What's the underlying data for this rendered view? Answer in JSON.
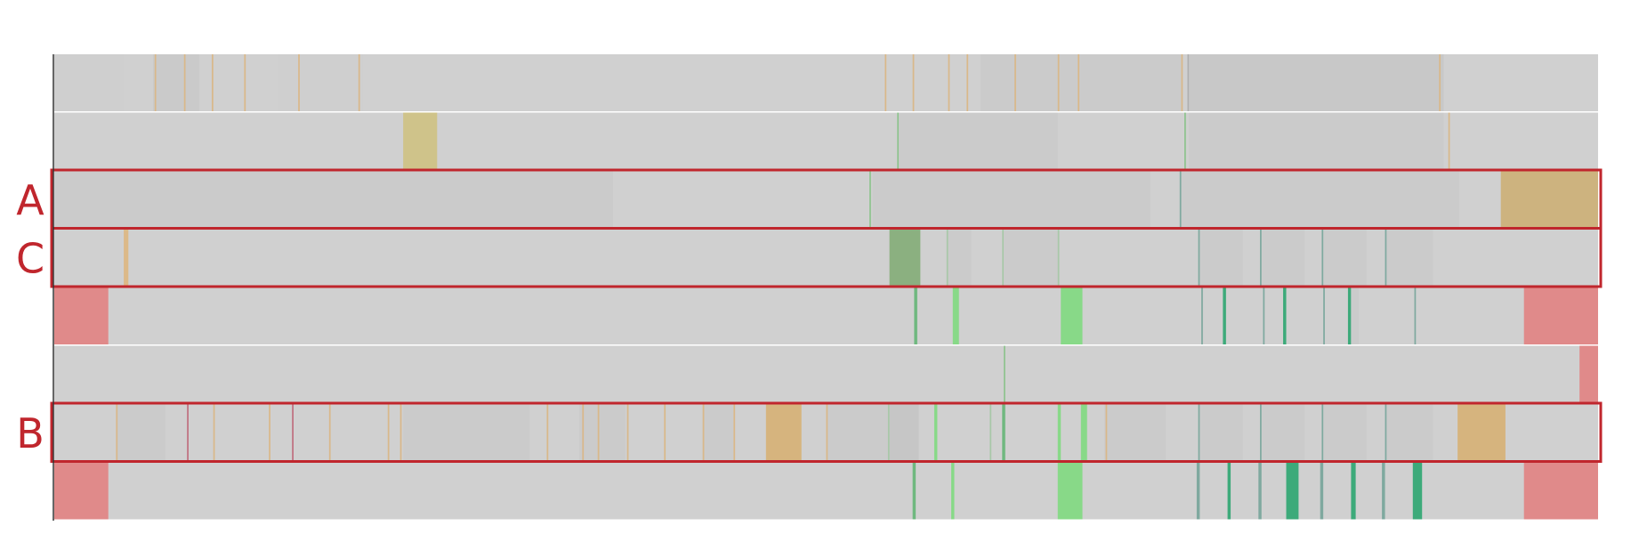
{
  "chart_data": {
    "type": "heatmap",
    "title": "",
    "xlabel": "",
    "ylabel": "",
    "x_range": [
      0,
      1
    ],
    "grid": false,
    "legend": "none",
    "base_color": "#d0d0d0",
    "highlight_color": "#c0262d",
    "row_label_color": "#c0262d",
    "tracks": [
      {
        "label": "",
        "highlighted": false,
        "segments": [
          {
            "start": 0.0,
            "end": 0.045,
            "color": "#cfcfcf"
          },
          {
            "start": 0.064,
            "end": 0.094,
            "color": "#cacaca"
          },
          {
            "start": 0.145,
            "end": 0.2,
            "color": "#cfcfcf"
          },
          {
            "start": 0.6,
            "end": 0.73,
            "color": "#cbcbcb"
          },
          {
            "start": 0.735,
            "end": 0.9,
            "color": "#c8c8c8"
          },
          {
            "start": 0.065,
            "end": 0.066,
            "color": "#d9b88a"
          },
          {
            "start": 0.084,
            "end": 0.085,
            "color": "#d9b88a"
          },
          {
            "start": 0.102,
            "end": 0.103,
            "color": "#d9b88a"
          },
          {
            "start": 0.123,
            "end": 0.124,
            "color": "#d9b88a"
          },
          {
            "start": 0.158,
            "end": 0.159,
            "color": "#d9b88a"
          },
          {
            "start": 0.197,
            "end": 0.198,
            "color": "#d9b88a"
          },
          {
            "start": 0.538,
            "end": 0.539,
            "color": "#d9b88a"
          },
          {
            "start": 0.556,
            "end": 0.557,
            "color": "#d9b88a"
          },
          {
            "start": 0.579,
            "end": 0.58,
            "color": "#d9b88a"
          },
          {
            "start": 0.591,
            "end": 0.592,
            "color": "#d9b88a"
          },
          {
            "start": 0.622,
            "end": 0.623,
            "color": "#d9b88a"
          },
          {
            "start": 0.65,
            "end": 0.651,
            "color": "#d9b88a"
          },
          {
            "start": 0.663,
            "end": 0.664,
            "color": "#d9b88a"
          },
          {
            "start": 0.73,
            "end": 0.731,
            "color": "#d9b88a"
          },
          {
            "start": 0.734,
            "end": 0.735,
            "color": "#b0b0b0"
          },
          {
            "start": 0.897,
            "end": 0.898,
            "color": "#d9b88a"
          }
        ]
      },
      {
        "label": "",
        "highlighted": false,
        "segments": [
          {
            "start": 0.546,
            "end": 0.65,
            "color": "#cbcbcb"
          },
          {
            "start": 0.735,
            "end": 0.9,
            "color": "#cbcbcb"
          },
          {
            "start": 0.226,
            "end": 0.248,
            "color": "#cfc38a"
          },
          {
            "start": 0.546,
            "end": 0.547,
            "color": "#8fc48f"
          },
          {
            "start": 0.732,
            "end": 0.733,
            "color": "#8fc48f"
          },
          {
            "start": 0.903,
            "end": 0.904,
            "color": "#d9b88a"
          }
        ]
      },
      {
        "label": "A",
        "highlighted": true,
        "segments": [
          {
            "start": 0.0,
            "end": 0.362,
            "color": "#cbcbcb"
          },
          {
            "start": 0.53,
            "end": 0.71,
            "color": "#cbcbcb"
          },
          {
            "start": 0.73,
            "end": 0.91,
            "color": "#cbcbcb"
          },
          {
            "start": 0.528,
            "end": 0.529,
            "color": "#8fc48f"
          },
          {
            "start": 0.729,
            "end": 0.73,
            "color": "#7fa99f"
          },
          {
            "start": 0.937,
            "end": 1.0,
            "color": "#cdb37f"
          }
        ]
      },
      {
        "label": "C",
        "highlighted": true,
        "segments": [
          {
            "start": 0.045,
            "end": 0.048,
            "color": "#dcb988"
          },
          {
            "start": 0.541,
            "end": 0.561,
            "color": "#8bb080"
          },
          {
            "start": 0.578,
            "end": 0.594,
            "color": "#cbcbcb"
          },
          {
            "start": 0.615,
            "end": 0.65,
            "color": "#cbcbcb"
          },
          {
            "start": 0.742,
            "end": 0.77,
            "color": "#cbcbcb"
          },
          {
            "start": 0.782,
            "end": 0.81,
            "color": "#cbcbcb"
          },
          {
            "start": 0.822,
            "end": 0.85,
            "color": "#cbcbcb"
          },
          {
            "start": 0.863,
            "end": 0.893,
            "color": "#cbcbcb"
          },
          {
            "start": 0.578,
            "end": 0.579,
            "color": "#a8c8a8"
          },
          {
            "start": 0.614,
            "end": 0.615,
            "color": "#a8c8a8"
          },
          {
            "start": 0.65,
            "end": 0.651,
            "color": "#a8c8a8"
          },
          {
            "start": 0.741,
            "end": 0.742,
            "color": "#7fa99f"
          },
          {
            "start": 0.781,
            "end": 0.782,
            "color": "#7fa99f"
          },
          {
            "start": 0.821,
            "end": 0.822,
            "color": "#7fa99f"
          },
          {
            "start": 0.862,
            "end": 0.863,
            "color": "#7fa99f"
          }
        ]
      },
      {
        "label": "",
        "highlighted": false,
        "segments": [
          {
            "start": 0.0,
            "end": 0.035,
            "color": "#e08a8a"
          },
          {
            "start": 0.952,
            "end": 1.0,
            "color": "#e08a8a"
          },
          {
            "start": 0.557,
            "end": 0.559,
            "color": "#6fb87f"
          },
          {
            "start": 0.582,
            "end": 0.586,
            "color": "#88d988"
          },
          {
            "start": 0.652,
            "end": 0.666,
            "color": "#88d988"
          },
          {
            "start": 0.743,
            "end": 0.744,
            "color": "#7fa99f"
          },
          {
            "start": 0.757,
            "end": 0.759,
            "color": "#3daa7a"
          },
          {
            "start": 0.783,
            "end": 0.784,
            "color": "#7fa99f"
          },
          {
            "start": 0.796,
            "end": 0.798,
            "color": "#3daa7a"
          },
          {
            "start": 0.822,
            "end": 0.823,
            "color": "#7fa99f"
          },
          {
            "start": 0.838,
            "end": 0.84,
            "color": "#3daa7a"
          },
          {
            "start": 0.84,
            "end": 0.845,
            "color": "#cbcbcb"
          },
          {
            "start": 0.881,
            "end": 0.882,
            "color": "#7fa99f"
          }
        ]
      },
      {
        "label": "",
        "highlighted": false,
        "segments": [
          {
            "start": 0.615,
            "end": 0.616,
            "color": "#8fc48f"
          },
          {
            "start": 0.988,
            "end": 1.0,
            "color": "#e08a8a"
          }
        ]
      },
      {
        "label": "B",
        "highlighted": true,
        "segments": [
          {
            "start": 0.04,
            "end": 0.072,
            "color": "#cbcbcb"
          },
          {
            "start": 0.226,
            "end": 0.308,
            "color": "#cbcbcb"
          },
          {
            "start": 0.34,
            "end": 0.37,
            "color": "#cbcbcb"
          },
          {
            "start": 0.42,
            "end": 0.44,
            "color": "#cbcbcb"
          },
          {
            "start": 0.5,
            "end": 0.54,
            "color": "#cbcbcb"
          },
          {
            "start": 0.54,
            "end": 0.56,
            "color": "#c6c6c6"
          },
          {
            "start": 0.68,
            "end": 0.72,
            "color": "#cbcbcb"
          },
          {
            "start": 0.742,
            "end": 0.77,
            "color": "#cbcbcb"
          },
          {
            "start": 0.782,
            "end": 0.81,
            "color": "#cbcbcb"
          },
          {
            "start": 0.822,
            "end": 0.85,
            "color": "#cbcbcb"
          },
          {
            "start": 0.863,
            "end": 0.893,
            "color": "#cbcbcb"
          },
          {
            "start": 0.04,
            "end": 0.041,
            "color": "#d9b88a"
          },
          {
            "start": 0.086,
            "end": 0.087,
            "color": "#c07080"
          },
          {
            "start": 0.103,
            "end": 0.104,
            "color": "#d9b88a"
          },
          {
            "start": 0.139,
            "end": 0.14,
            "color": "#d9b88a"
          },
          {
            "start": 0.154,
            "end": 0.155,
            "color": "#c07080"
          },
          {
            "start": 0.178,
            "end": 0.179,
            "color": "#d9b88a"
          },
          {
            "start": 0.216,
            "end": 0.217,
            "color": "#d9b88a"
          },
          {
            "start": 0.224,
            "end": 0.225,
            "color": "#d9b88a"
          },
          {
            "start": 0.319,
            "end": 0.32,
            "color": "#d9b88a"
          },
          {
            "start": 0.342,
            "end": 0.343,
            "color": "#d9b88a"
          },
          {
            "start": 0.352,
            "end": 0.353,
            "color": "#d9b88a"
          },
          {
            "start": 0.371,
            "end": 0.372,
            "color": "#d9b88a"
          },
          {
            "start": 0.395,
            "end": 0.396,
            "color": "#d9b88a"
          },
          {
            "start": 0.42,
            "end": 0.421,
            "color": "#d9b88a"
          },
          {
            "start": 0.44,
            "end": 0.441,
            "color": "#d9b88a"
          },
          {
            "start": 0.461,
            "end": 0.484,
            "color": "#d6b47e"
          },
          {
            "start": 0.5,
            "end": 0.501,
            "color": "#d9b88a"
          },
          {
            "start": 0.54,
            "end": 0.541,
            "color": "#a8c8a8"
          },
          {
            "start": 0.57,
            "end": 0.572,
            "color": "#88d988"
          },
          {
            "start": 0.606,
            "end": 0.607,
            "color": "#a8c8a8"
          },
          {
            "start": 0.614,
            "end": 0.616,
            "color": "#6fb87f"
          },
          {
            "start": 0.65,
            "end": 0.652,
            "color": "#88d988"
          },
          {
            "start": 0.665,
            "end": 0.669,
            "color": "#88d988"
          },
          {
            "start": 0.681,
            "end": 0.682,
            "color": "#d9b88a"
          },
          {
            "start": 0.741,
            "end": 0.742,
            "color": "#7fa99f"
          },
          {
            "start": 0.781,
            "end": 0.782,
            "color": "#7fa99f"
          },
          {
            "start": 0.821,
            "end": 0.822,
            "color": "#7fa99f"
          },
          {
            "start": 0.862,
            "end": 0.863,
            "color": "#7fa99f"
          },
          {
            "start": 0.909,
            "end": 0.94,
            "color": "#d6b47e"
          }
        ]
      },
      {
        "label": "",
        "highlighted": false,
        "segments": [
          {
            "start": 0.0,
            "end": 0.035,
            "color": "#e08a8a"
          },
          {
            "start": 0.952,
            "end": 1.0,
            "color": "#e08a8a"
          },
          {
            "start": 0.556,
            "end": 0.558,
            "color": "#6fb87f"
          },
          {
            "start": 0.581,
            "end": 0.583,
            "color": "#88d988"
          },
          {
            "start": 0.65,
            "end": 0.666,
            "color": "#88d988"
          },
          {
            "start": 0.74,
            "end": 0.742,
            "color": "#7fa99f"
          },
          {
            "start": 0.76,
            "end": 0.762,
            "color": "#3daa7a"
          },
          {
            "start": 0.78,
            "end": 0.782,
            "color": "#7fa99f"
          },
          {
            "start": 0.798,
            "end": 0.806,
            "color": "#3daa7a"
          },
          {
            "start": 0.82,
            "end": 0.822,
            "color": "#7fa99f"
          },
          {
            "start": 0.84,
            "end": 0.843,
            "color": "#3daa7a"
          },
          {
            "start": 0.86,
            "end": 0.862,
            "color": "#7fa99f"
          },
          {
            "start": 0.88,
            "end": 0.886,
            "color": "#3daa7a"
          }
        ]
      }
    ]
  }
}
